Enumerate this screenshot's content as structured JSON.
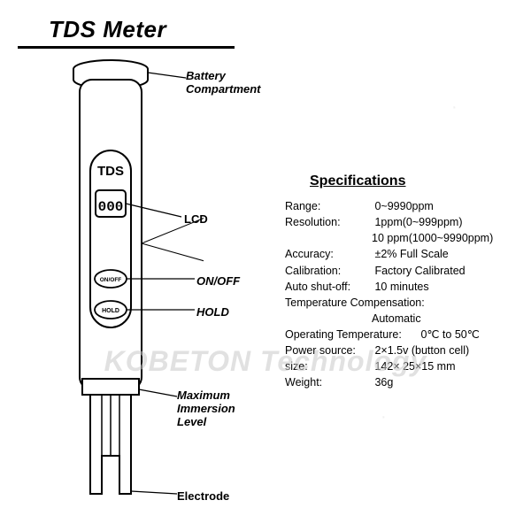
{
  "title": "TDS Meter",
  "watermark": "KOBETON Technology",
  "device": {
    "label_on_body": "TDS",
    "display_digits": "000",
    "button1": "ON/OFF",
    "button2": "HOLD"
  },
  "callouts": {
    "battery": "Battery\nCompartment",
    "lcd": "LCD",
    "onoff": "ON/OFF",
    "hold": "HOLD",
    "max_immersion": "Maximum\nImmersion\nLevel",
    "electrode": "Electrode"
  },
  "specifications": {
    "title": "Specifications",
    "rows": [
      {
        "k": "Range:",
        "v": "0~9990ppm"
      },
      {
        "k": "Resolution:",
        "v": "1ppm(0~999ppm)"
      },
      {
        "k": "",
        "v": "10 ppm(1000~9990ppm)"
      },
      {
        "k": "Accuracy:",
        "v": "±2%  Full Scale"
      },
      {
        "k": "Calibration:",
        "v": "Factory Calibrated"
      },
      {
        "k": "Auto shut-off:",
        "v": "10 minutes"
      },
      {
        "k": "Temperature Compensation:",
        "v": ""
      },
      {
        "k": "",
        "v": "Automatic"
      },
      {
        "k": "Operating Temperature:",
        "v": "0℃ to 50℃"
      },
      {
        "k": "Power source:",
        "v": "2×1.5v (button cell)"
      },
      {
        "k": "size:",
        "v": "142× 25×15 mm"
      },
      {
        "k": "Weight:",
        "v": "36g"
      }
    ]
  },
  "diagram_style": {
    "stroke": "#000000",
    "stroke_width": 2,
    "fill": "#ffffff",
    "lcd_digit_stroke": "#000000",
    "background": "#ffffff"
  }
}
